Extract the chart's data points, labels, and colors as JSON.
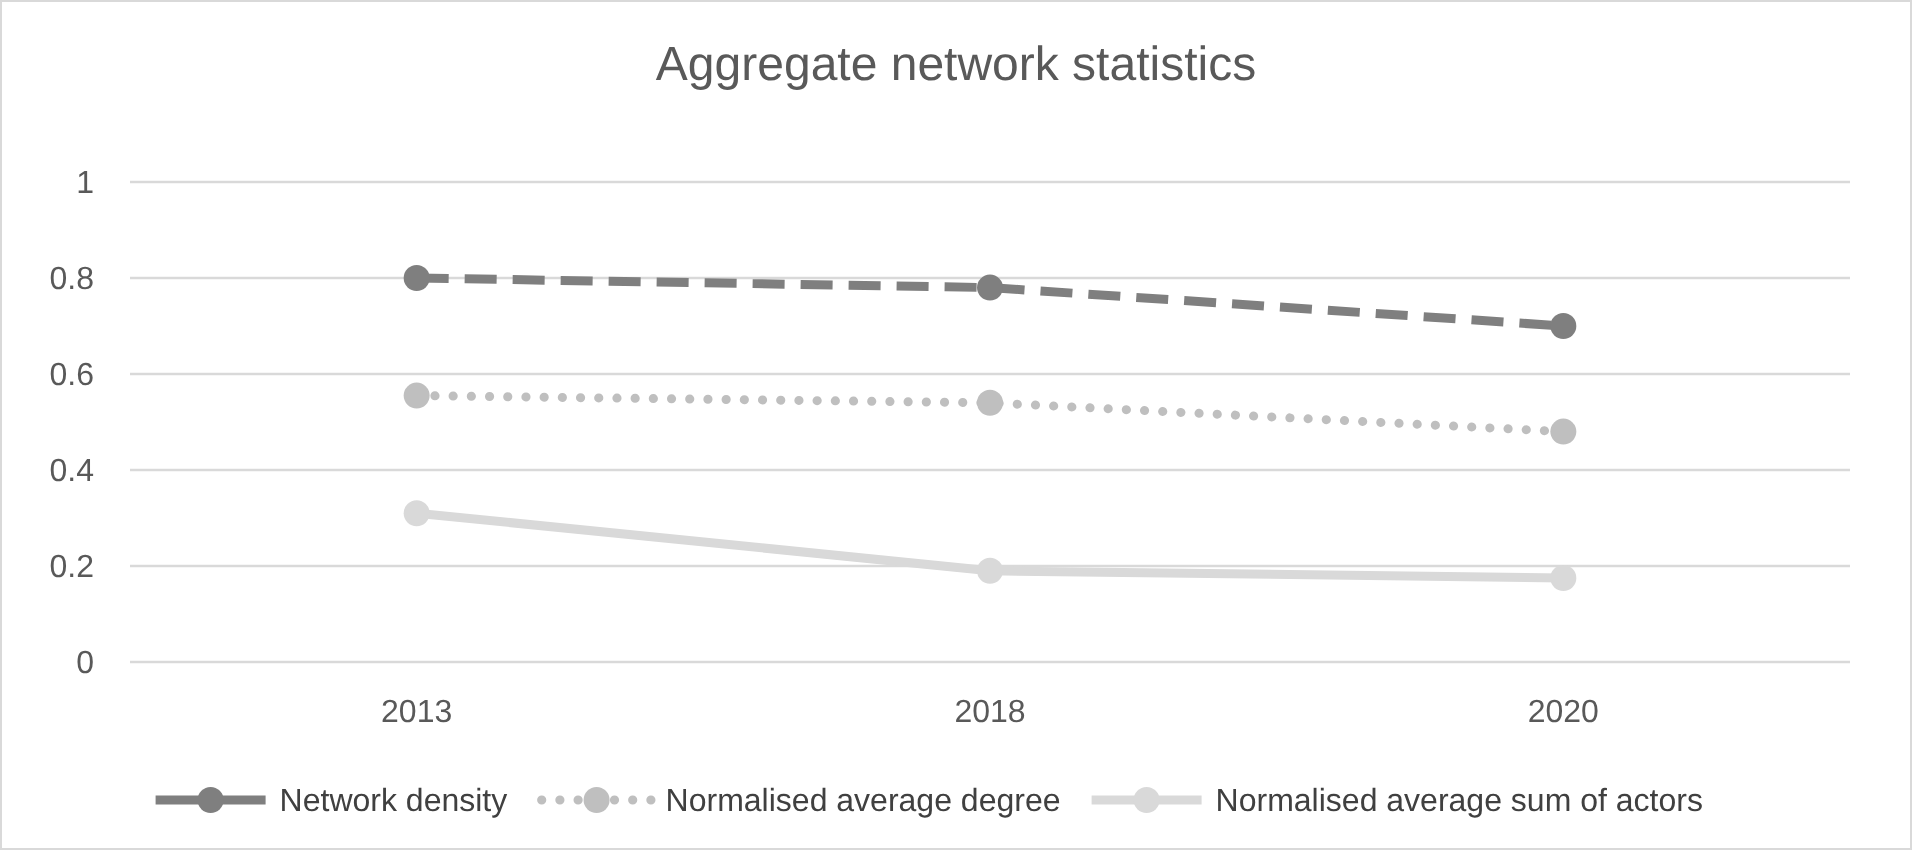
{
  "chart_data": {
    "type": "line",
    "title": "Aggregate network statistics",
    "categories": [
      "2013",
      "2018",
      "2020"
    ],
    "series": [
      {
        "name": "Network density",
        "color": "#7f7f7f",
        "line_style": "dashed",
        "values": [
          0.8,
          0.78,
          0.7
        ]
      },
      {
        "name": "Normalised average degree",
        "color": "#bfbfbf",
        "line_style": "dotted",
        "values": [
          0.555,
          0.54,
          0.48
        ]
      },
      {
        "name": "Normalised average sum of actors",
        "color": "#d9d9d9",
        "line_style": "solid",
        "values": [
          0.31,
          0.19,
          0.175
        ]
      }
    ],
    "ylim": [
      0,
      1
    ],
    "yticks": [
      0,
      0.2,
      0.4,
      0.6,
      0.8,
      1
    ],
    "grid": "y",
    "legend": "bottom",
    "marker": "circle"
  }
}
